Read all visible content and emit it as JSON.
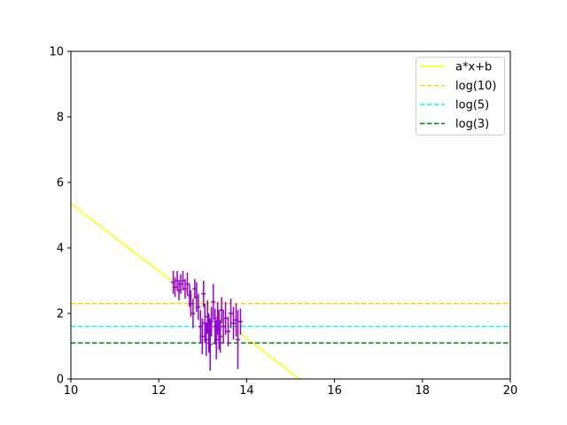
{
  "chart_data": {
    "type": "scatter",
    "title": "",
    "xlabel": "",
    "ylabel": "",
    "xlim": [
      10,
      20
    ],
    "ylim": [
      0,
      10
    ],
    "xticks": [
      "10",
      "12",
      "14",
      "16",
      "18",
      "20"
    ],
    "yticks": [
      "0",
      "2",
      "4",
      "6",
      "8",
      "10"
    ],
    "grid": false,
    "legend_position": "top-right",
    "series": [
      {
        "name": "a*x+b",
        "kind": "line",
        "style": "solid",
        "color": "#ffff00",
        "x": [
          10,
          15.2
        ],
        "y": [
          5.35,
          0
        ]
      },
      {
        "name": "log(10)",
        "kind": "hline",
        "style": "dashed",
        "color": "#ffd700",
        "y": 2.303
      },
      {
        "name": "log(5)",
        "kind": "hline",
        "style": "dashed",
        "color": "#00ffff",
        "y": 1.609
      },
      {
        "name": "log(3)",
        "kind": "hline",
        "style": "dashed",
        "color": "#008000",
        "y": 1.099
      },
      {
        "kind": "errorbar",
        "color": "#9400d3",
        "points": [
          {
            "x": 12.33,
            "y": 2.95,
            "xerr": 0.05,
            "yerr": 0.35
          },
          {
            "x": 12.37,
            "y": 2.8,
            "xerr": 0.05,
            "yerr": 0.3
          },
          {
            "x": 12.42,
            "y": 3.0,
            "xerr": 0.05,
            "yerr": 0.3
          },
          {
            "x": 12.46,
            "y": 2.7,
            "xerr": 0.05,
            "yerr": 0.3
          },
          {
            "x": 12.5,
            "y": 2.9,
            "xerr": 0.05,
            "yerr": 0.3
          },
          {
            "x": 12.55,
            "y": 3.0,
            "xerr": 0.05,
            "yerr": 0.3
          },
          {
            "x": 12.6,
            "y": 2.75,
            "xerr": 0.05,
            "yerr": 0.3
          },
          {
            "x": 12.65,
            "y": 2.9,
            "xerr": 0.05,
            "yerr": 0.35
          },
          {
            "x": 12.7,
            "y": 2.55,
            "xerr": 0.05,
            "yerr": 0.35
          },
          {
            "x": 12.73,
            "y": 2.3,
            "xerr": 0.05,
            "yerr": 0.4
          },
          {
            "x": 12.78,
            "y": 2.0,
            "xerr": 0.05,
            "yerr": 0.45
          },
          {
            "x": 12.82,
            "y": 2.75,
            "xerr": 0.05,
            "yerr": 0.3
          },
          {
            "x": 12.86,
            "y": 2.5,
            "xerr": 0.05,
            "yerr": 0.45
          },
          {
            "x": 12.9,
            "y": 2.2,
            "xerr": 0.05,
            "yerr": 0.4
          },
          {
            "x": 12.95,
            "y": 1.6,
            "xerr": 0.05,
            "yerr": 0.5
          },
          {
            "x": 12.99,
            "y": 1.3,
            "xerr": 0.05,
            "yerr": 0.55
          },
          {
            "x": 13.02,
            "y": 2.6,
            "xerr": 0.05,
            "yerr": 0.4
          },
          {
            "x": 13.05,
            "y": 1.7,
            "xerr": 0.05,
            "yerr": 0.6
          },
          {
            "x": 13.08,
            "y": 1.2,
            "xerr": 0.05,
            "yerr": 0.5
          },
          {
            "x": 13.11,
            "y": 1.9,
            "xerr": 0.05,
            "yerr": 0.5
          },
          {
            "x": 13.14,
            "y": 1.4,
            "xerr": 0.05,
            "yerr": 0.6
          },
          {
            "x": 13.17,
            "y": 1.05,
            "xerr": 0.05,
            "yerr": 0.8
          },
          {
            "x": 13.2,
            "y": 1.75,
            "xerr": 0.05,
            "yerr": 0.45
          },
          {
            "x": 13.24,
            "y": 2.35,
            "xerr": 0.05,
            "yerr": 0.55
          },
          {
            "x": 13.28,
            "y": 1.6,
            "xerr": 0.05,
            "yerr": 0.55
          },
          {
            "x": 13.31,
            "y": 1.2,
            "xerr": 0.05,
            "yerr": 0.6
          },
          {
            "x": 13.34,
            "y": 1.85,
            "xerr": 0.05,
            "yerr": 0.5
          },
          {
            "x": 13.37,
            "y": 1.5,
            "xerr": 0.05,
            "yerr": 0.6
          },
          {
            "x": 13.4,
            "y": 1.3,
            "xerr": 0.05,
            "yerr": 0.5
          },
          {
            "x": 13.43,
            "y": 2.1,
            "xerr": 0.05,
            "yerr": 0.4
          },
          {
            "x": 13.47,
            "y": 1.6,
            "xerr": 0.05,
            "yerr": 0.5
          },
          {
            "x": 13.52,
            "y": 1.85,
            "xerr": 0.05,
            "yerr": 0.5
          },
          {
            "x": 13.58,
            "y": 1.45,
            "xerr": 0.05,
            "yerr": 0.45
          },
          {
            "x": 13.64,
            "y": 2.0,
            "xerr": 0.05,
            "yerr": 0.45
          },
          {
            "x": 13.7,
            "y": 1.7,
            "xerr": 0.05,
            "yerr": 0.5
          },
          {
            "x": 13.76,
            "y": 1.8,
            "xerr": 0.05,
            "yerr": 0.5
          },
          {
            "x": 13.8,
            "y": 1.2,
            "xerr": 0.05,
            "yerr": 0.9
          },
          {
            "x": 13.86,
            "y": 1.75,
            "xerr": 0.05,
            "yerr": 0.4
          }
        ]
      }
    ]
  }
}
